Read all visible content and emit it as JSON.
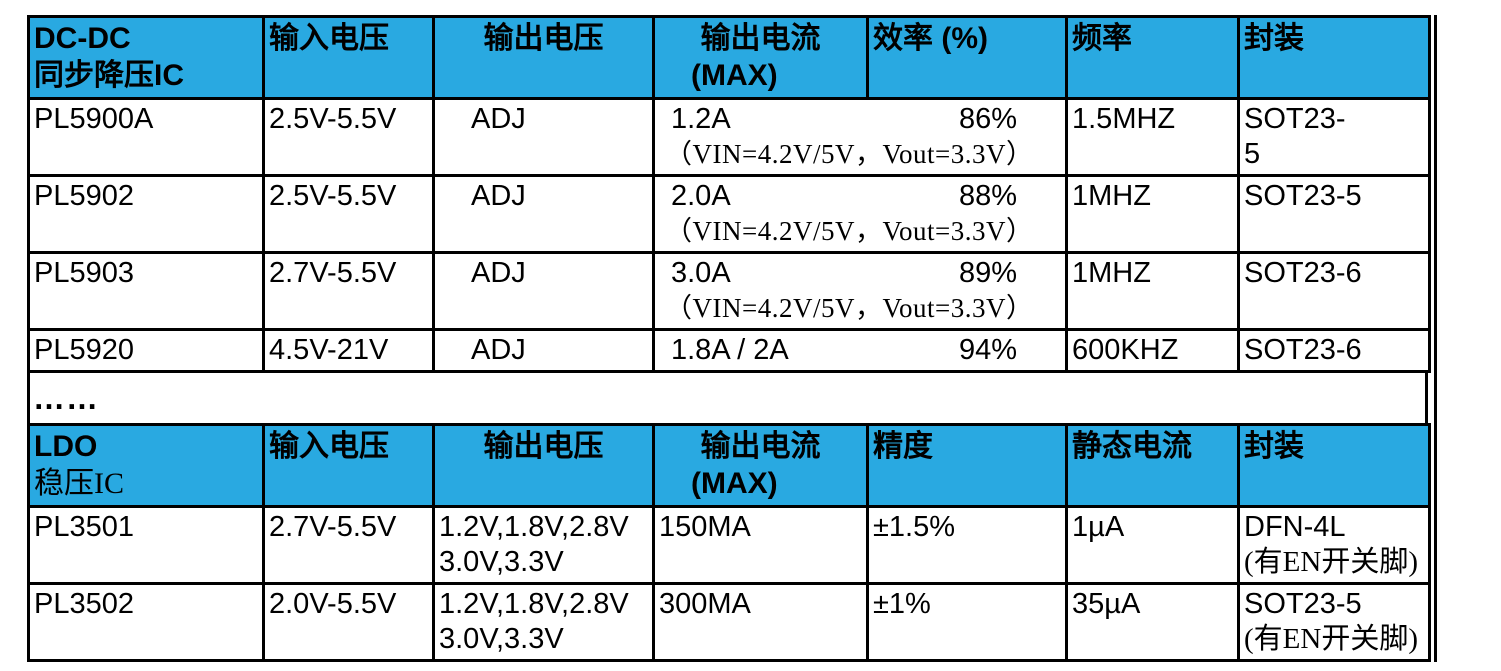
{
  "page": {
    "header_bg": "#29a9e1",
    "border_color": "#000000",
    "ellipsis": "……"
  },
  "dcdc_table": {
    "header": {
      "col1_line1": "DC-DC",
      "col1_line2": "同步降压IC",
      "col2": "输入电压",
      "col3": "输出电压",
      "col4_line1": "输出电流",
      "col4_line2": "(MAX)",
      "col5": "效率 (%)",
      "col6": "频率",
      "col7": "封装"
    },
    "rows": [
      {
        "model": "PL5900A",
        "vin": "2.5V-5.5V",
        "vout": "ADJ",
        "current": "1.2A",
        "efficiency": "86%",
        "condition": "（VIN=4.2V/5V，Vout=3.3V）",
        "frequency": "1.5MHZ",
        "package_line1": "SOT23-",
        "package_line2": "5"
      },
      {
        "model": "PL5902",
        "vin": "2.5V-5.5V",
        "vout": "ADJ",
        "current": "2.0A",
        "efficiency": "88%",
        "condition": "（VIN=4.2V/5V，Vout=3.3V）",
        "frequency": "1MHZ",
        "package_line1": "SOT23-5"
      },
      {
        "model": "PL5903",
        "vin": "2.7V-5.5V",
        "vout": "ADJ",
        "current": "3.0A",
        "efficiency": "89%",
        "condition": "（VIN=4.2V/5V，Vout=3.3V）",
        "frequency": "1MHZ",
        "package_line1": "SOT23-6"
      },
      {
        "model": "PL5920",
        "vin": "4.5V-21V",
        "vout": "ADJ",
        "current": "1.8A / 2A",
        "efficiency": "94%",
        "condition": "",
        "frequency": "600KHZ",
        "package_line1": "SOT23-6"
      }
    ]
  },
  "ldo_table": {
    "header": {
      "col1_line1": "LDO",
      "col1_line2": "稳压IC",
      "col2": "输入电压",
      "col3": "输出电压",
      "col4_line1": "输出电流",
      "col4_line2": "(MAX)",
      "col5": "精度",
      "col6": "静态电流",
      "col7": "封装"
    },
    "rows": [
      {
        "model": "PL3501",
        "vin": "2.7V-5.5V",
        "vout_line1": "1.2V,1.8V,2.8V",
        "vout_line2": "3.0V,3.3V",
        "current": "150MA",
        "accuracy": "±1.5%",
        "iq": "1µA",
        "package_line1": "DFN-4L",
        "package_line2": "(有EN开关脚)"
      },
      {
        "model": "PL3502",
        "vin": "2.0V-5.5V",
        "vout_line1": "1.2V,1.8V,2.8V",
        "vout_line2": "3.0V,3.3V",
        "current": "300MA",
        "accuracy": "±1%",
        "iq": "35µA",
        "package_line1": "SOT23-5",
        "package_line2": "(有EN开关脚)"
      }
    ]
  }
}
